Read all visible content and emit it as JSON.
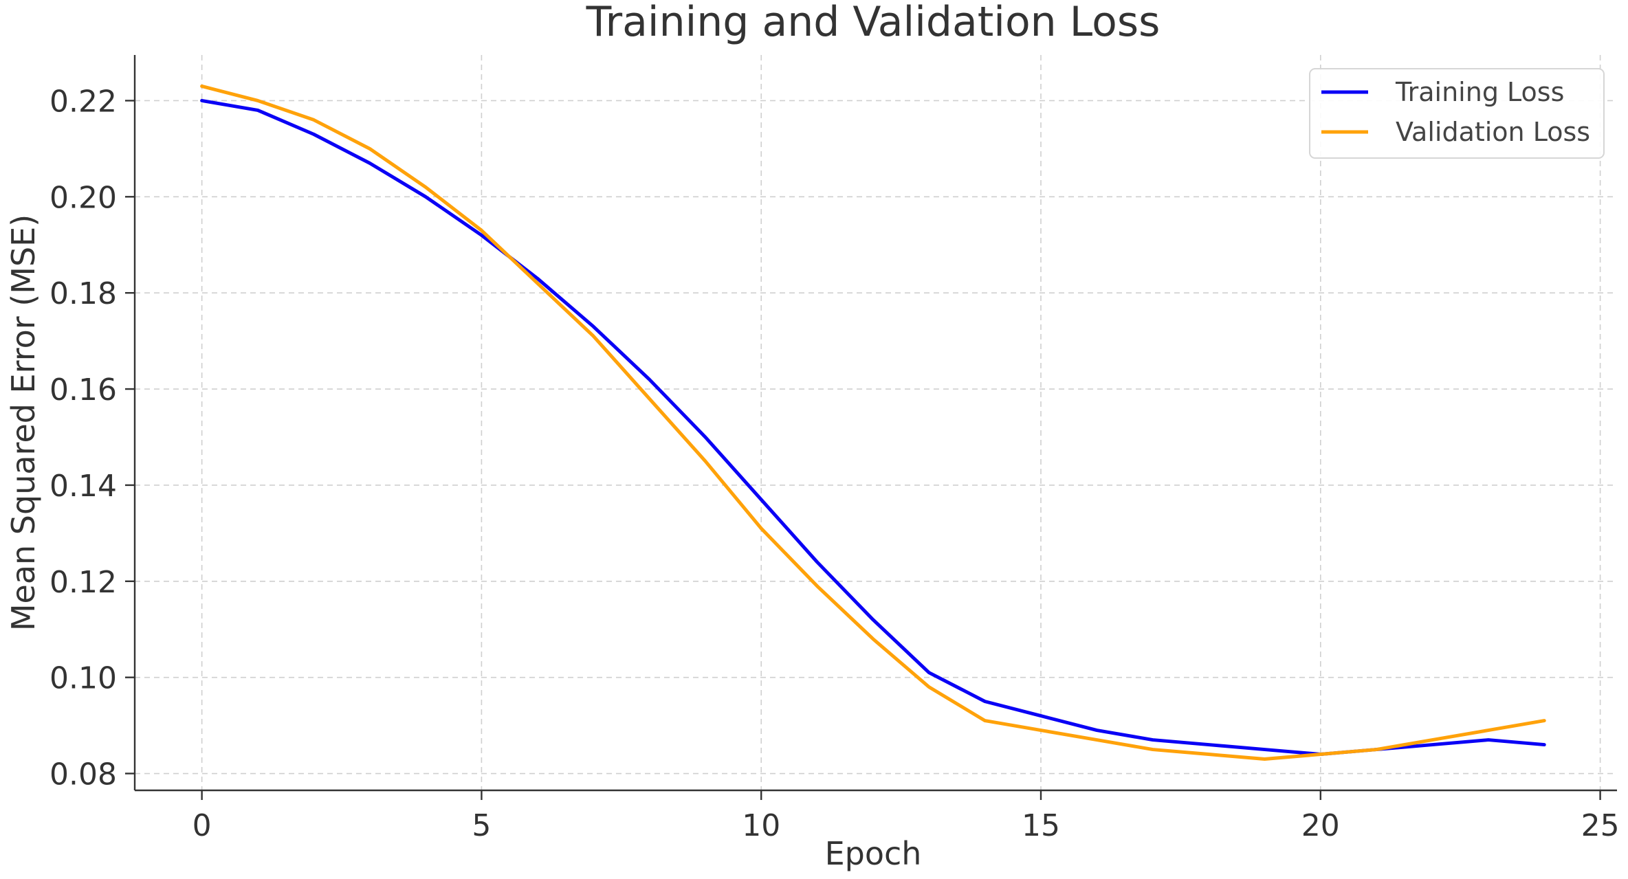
{
  "chart_data": {
    "type": "line",
    "title": "Training and Validation Loss",
    "xlabel": "Epoch",
    "ylabel": "Mean Squared Error (MSE)",
    "xlim": [
      -1.2,
      25.3
    ],
    "ylim": [
      0.0765,
      0.2295
    ],
    "xticks": [
      0,
      5,
      10,
      15,
      20,
      25
    ],
    "xtick_labels": [
      "0",
      "5",
      "10",
      "15",
      "20",
      "25"
    ],
    "yticks": [
      0.08,
      0.1,
      0.12,
      0.14,
      0.16,
      0.18,
      0.2,
      0.22
    ],
    "ytick_labels": [
      "0.08",
      "0.10",
      "0.12",
      "0.14",
      "0.16",
      "0.18",
      "0.20",
      "0.22"
    ],
    "grid": true,
    "legend_position": "top-right",
    "x": [
      0,
      1,
      2,
      3,
      4,
      5,
      6,
      7,
      8,
      9,
      10,
      11,
      12,
      13,
      14,
      15,
      16,
      17,
      18,
      19,
      20,
      21,
      22,
      23,
      24
    ],
    "series": [
      {
        "name": "Training Loss",
        "color": "#0a00f5",
        "values": [
          0.22,
          0.218,
          0.213,
          0.207,
          0.2,
          0.192,
          0.183,
          0.173,
          0.162,
          0.15,
          0.137,
          0.124,
          0.112,
          0.101,
          0.095,
          0.092,
          0.089,
          0.087,
          0.086,
          0.085,
          0.084,
          0.085,
          0.086,
          0.087,
          0.086
        ]
      },
      {
        "name": "Validation Loss",
        "color": "#ffa20a",
        "values": [
          0.223,
          0.22,
          0.216,
          0.21,
          0.202,
          0.193,
          0.182,
          0.171,
          0.158,
          0.145,
          0.131,
          0.119,
          0.108,
          0.098,
          0.091,
          0.089,
          0.087,
          0.085,
          0.084,
          0.083,
          0.084,
          0.085,
          0.087,
          0.089,
          0.091
        ]
      }
    ]
  }
}
